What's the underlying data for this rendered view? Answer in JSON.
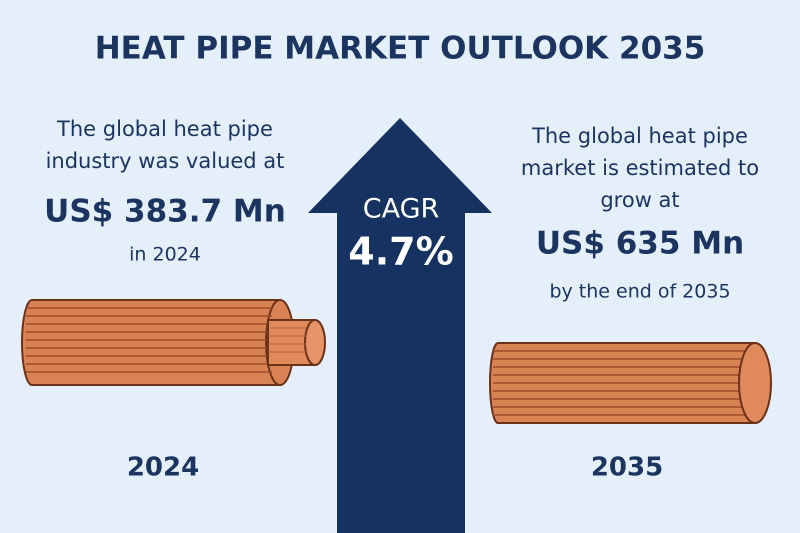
{
  "header": {
    "title": "HEAT PIPE MARKET OUTLOOK 2035"
  },
  "left": {
    "intro_lines": [
      "The global heat pipe",
      "industry was valued at"
    ],
    "value": "US$ 383.7 Mn",
    "note": "in 2024",
    "year": "2024"
  },
  "center": {
    "label": "CAGR",
    "value": "4.7%"
  },
  "right": {
    "intro_lines": [
      "The global heat pipe",
      "market is estimated to",
      "grow at"
    ],
    "value": "US$ 635 Mn",
    "note": "by the end of 2035",
    "year": "2035"
  }
}
